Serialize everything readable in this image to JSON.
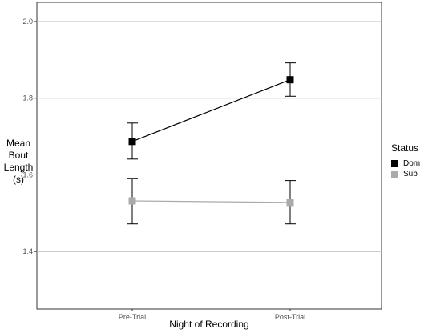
{
  "chart_data": {
    "type": "line",
    "xlabel": "Night of Recording",
    "ylabel_lines": [
      "Mean",
      "Bout",
      "Length",
      "(s)"
    ],
    "categories": [
      "Pre-Trial",
      "Post-Trial"
    ],
    "ylim": [
      1.25,
      2.05
    ],
    "yticks": [
      1.4,
      1.6,
      1.8,
      2.0
    ],
    "ytick_labels": [
      "1.4",
      "1.6",
      "1.8",
      "2.0"
    ],
    "grid": "horizontal",
    "legend": {
      "title": "Status",
      "position": "right"
    },
    "series": [
      {
        "name": "Dom",
        "color": "#000000",
        "values": [
          1.687,
          1.848
        ],
        "error_low": [
          1.641,
          1.805
        ],
        "error_high": [
          1.735,
          1.892
        ]
      },
      {
        "name": "Sub",
        "color": "#aaaaaa",
        "values": [
          1.532,
          1.528
        ],
        "error_low": [
          1.472,
          1.472
        ],
        "error_high": [
          1.591,
          1.585
        ]
      }
    ]
  }
}
